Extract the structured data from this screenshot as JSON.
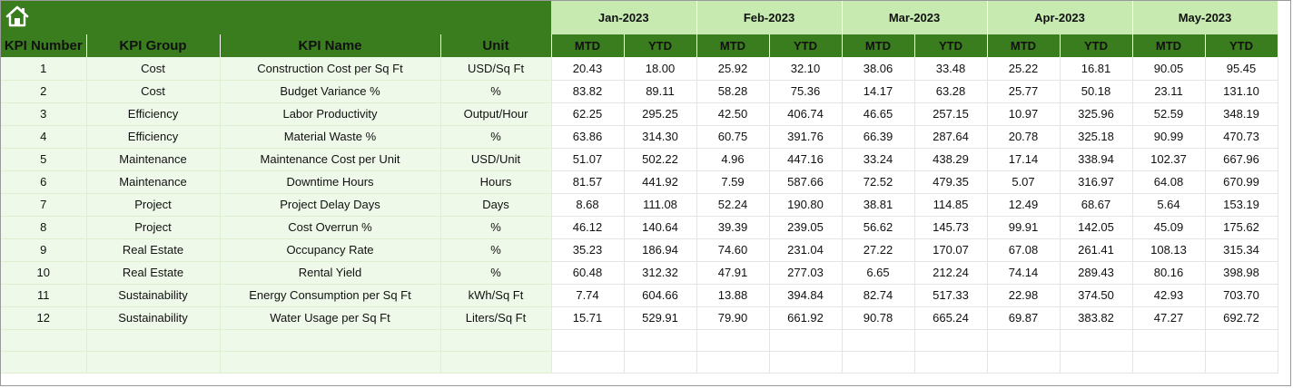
{
  "colors": {
    "header_green": "#3a7d1e",
    "month_band": "#c6eab0",
    "left_band": "#eff9e9"
  },
  "icons": {
    "home": "home-icon"
  },
  "months": [
    "Jan-2023",
    "Feb-2023",
    "Mar-2023",
    "Apr-2023",
    "May-2023"
  ],
  "subheaders": {
    "mtd": "MTD",
    "ytd": "YTD"
  },
  "columns": {
    "kpi_number": "KPI Number",
    "kpi_group": "KPI Group",
    "kpi_name": "KPI Name",
    "unit": "Unit"
  },
  "rows": [
    {
      "num": "1",
      "group": "Cost",
      "name": "Construction Cost per Sq Ft",
      "unit": "USD/Sq Ft",
      "vals": [
        "20.43",
        "18.00",
        "25.92",
        "32.10",
        "38.06",
        "33.48",
        "25.22",
        "16.81",
        "90.05",
        "95.45"
      ]
    },
    {
      "num": "2",
      "group": "Cost",
      "name": "Budget Variance %",
      "unit": "%",
      "vals": [
        "83.82",
        "89.11",
        "58.28",
        "75.36",
        "14.17",
        "63.28",
        "25.77",
        "50.18",
        "23.11",
        "131.10"
      ]
    },
    {
      "num": "3",
      "group": "Efficiency",
      "name": "Labor Productivity",
      "unit": "Output/Hour",
      "vals": [
        "62.25",
        "295.25",
        "42.50",
        "406.74",
        "46.65",
        "257.15",
        "10.97",
        "325.96",
        "52.59",
        "348.19"
      ]
    },
    {
      "num": "4",
      "group": "Efficiency",
      "name": "Material Waste %",
      "unit": "%",
      "vals": [
        "63.86",
        "314.30",
        "60.75",
        "391.76",
        "66.39",
        "287.64",
        "20.78",
        "325.18",
        "90.99",
        "470.73"
      ]
    },
    {
      "num": "5",
      "group": "Maintenance",
      "name": "Maintenance Cost per Unit",
      "unit": "USD/Unit",
      "vals": [
        "51.07",
        "502.22",
        "4.96",
        "447.16",
        "33.24",
        "438.29",
        "17.14",
        "338.94",
        "102.37",
        "667.96"
      ]
    },
    {
      "num": "6",
      "group": "Maintenance",
      "name": "Downtime Hours",
      "unit": "Hours",
      "vals": [
        "81.57",
        "441.92",
        "7.59",
        "587.66",
        "72.52",
        "479.35",
        "5.07",
        "316.97",
        "64.08",
        "670.99"
      ]
    },
    {
      "num": "7",
      "group": "Project",
      "name": "Project Delay Days",
      "unit": "Days",
      "vals": [
        "8.68",
        "111.08",
        "52.24",
        "190.80",
        "38.81",
        "114.85",
        "12.49",
        "68.67",
        "5.64",
        "153.19"
      ]
    },
    {
      "num": "8",
      "group": "Project",
      "name": "Cost Overrun %",
      "unit": "%",
      "vals": [
        "46.12",
        "140.64",
        "39.39",
        "239.05",
        "56.62",
        "145.73",
        "99.91",
        "142.05",
        "45.09",
        "175.62"
      ]
    },
    {
      "num": "9",
      "group": "Real Estate",
      "name": "Occupancy Rate",
      "unit": "%",
      "vals": [
        "35.23",
        "186.94",
        "74.60",
        "231.04",
        "27.22",
        "170.07",
        "67.08",
        "261.41",
        "108.13",
        "315.34"
      ]
    },
    {
      "num": "10",
      "group": "Real Estate",
      "name": "Rental Yield",
      "unit": "%",
      "vals": [
        "60.48",
        "312.32",
        "47.91",
        "277.03",
        "6.65",
        "212.24",
        "74.14",
        "289.43",
        "80.16",
        "398.98"
      ]
    },
    {
      "num": "11",
      "group": "Sustainability",
      "name": "Energy Consumption per Sq Ft",
      "unit": "kWh/Sq Ft",
      "vals": [
        "7.74",
        "604.66",
        "13.88",
        "394.84",
        "82.74",
        "517.33",
        "22.98",
        "374.50",
        "42.93",
        "703.70"
      ]
    },
    {
      "num": "12",
      "group": "Sustainability",
      "name": "Water Usage per Sq Ft",
      "unit": "Liters/Sq Ft",
      "vals": [
        "15.71",
        "529.91",
        "79.90",
        "661.92",
        "90.78",
        "665.24",
        "69.87",
        "383.82",
        "47.27",
        "692.72"
      ]
    }
  ]
}
